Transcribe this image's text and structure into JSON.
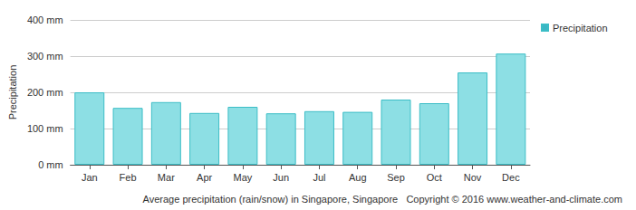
{
  "chart_data": {
    "type": "bar",
    "title": "Average precipitation (rain/snow) in Singapore, Singapore   Copyright © 2016 www.weather-and-climate.com",
    "y_label": "Precipitation",
    "categories": [
      "Jan",
      "Feb",
      "Mar",
      "Apr",
      "May",
      "Jun",
      "Jul",
      "Aug",
      "Sep",
      "Oct",
      "Nov",
      "Dec"
    ],
    "series": [
      {
        "name": "Precipitation",
        "color": "#8ddfe4",
        "values": [
          200,
          157,
          173,
          143,
          160,
          142,
          148,
          146,
          180,
          170,
          255,
          307
        ]
      }
    ],
    "ylim": [
      0,
      400
    ],
    "yticks": [
      {
        "value": 0,
        "label": "0 mm"
      },
      {
        "value": 100,
        "label": "100 mm"
      },
      {
        "value": 200,
        "label": "200 mm"
      },
      {
        "value": 300,
        "label": "300 mm"
      },
      {
        "value": 400,
        "label": "400 mm"
      }
    ],
    "grid": true,
    "legend": "top-right"
  }
}
